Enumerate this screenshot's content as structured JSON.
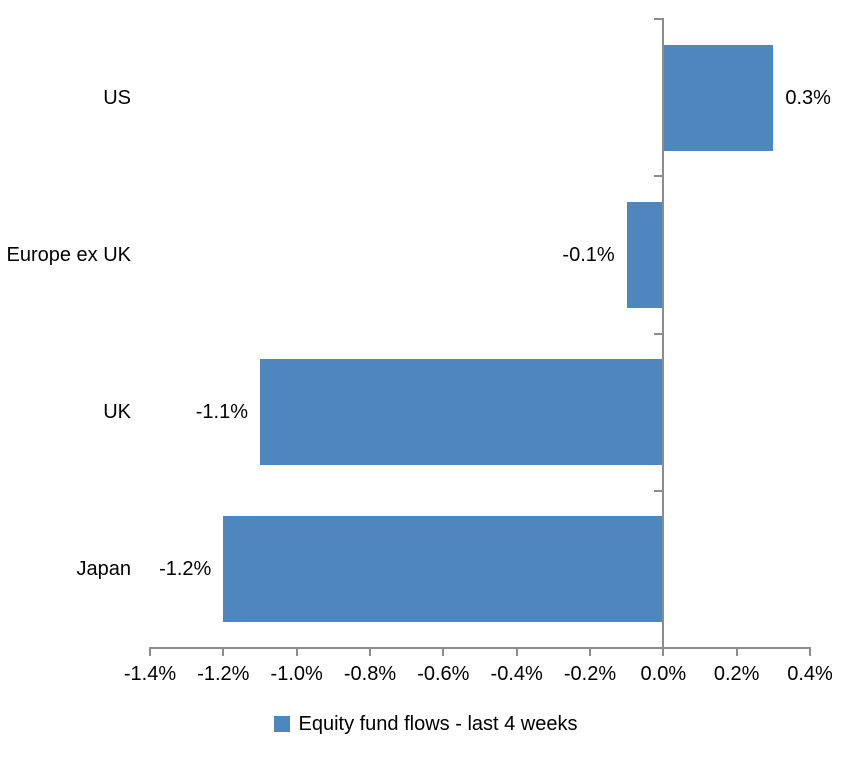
{
  "chart_data": {
    "type": "bar",
    "orientation": "horizontal",
    "title": "",
    "xlabel": "",
    "ylabel": "",
    "categories": [
      "US",
      "Europe ex UK",
      "UK",
      "Japan"
    ],
    "series": [
      {
        "name": "Equity fund flows - last 4 weeks",
        "values": [
          0.3,
          -0.1,
          -1.1,
          -1.2
        ],
        "data_labels": [
          "0.3%",
          "-0.1%",
          "-1.1%",
          "-1.2%"
        ]
      }
    ],
    "value_unit": "percent",
    "xlim": [
      -1.4,
      0.4
    ],
    "x_ticks": [
      -1.4,
      -1.2,
      -1.0,
      -0.8,
      -0.6,
      -0.4,
      -0.2,
      0.0,
      0.2,
      0.4
    ],
    "x_tick_labels": [
      "-1.4%",
      "-1.2%",
      "-1.0%",
      "-0.8%",
      "-0.6%",
      "-0.4%",
      "-0.2%",
      "0.0%",
      "0.2%",
      "0.4%"
    ],
    "grid": false,
    "legend_position": "bottom",
    "colors": {
      "bar": "#4E87BE",
      "axis": "#8C8C8C",
      "text": "#000000",
      "background": "#FFFFFF"
    }
  },
  "legend": {
    "label": "Equity fund flows - last 4 weeks"
  }
}
